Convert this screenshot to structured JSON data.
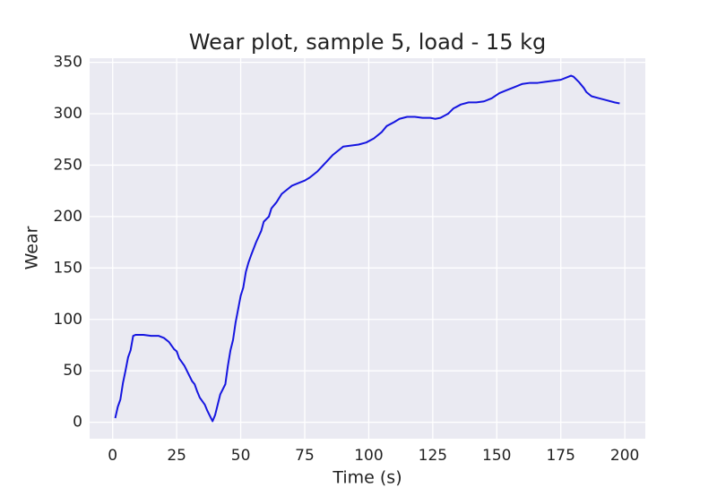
{
  "chart_data": {
    "type": "line",
    "title": "Wear plot, sample 5, load - 15 kg",
    "xlabel": "Time (s)",
    "ylabel": "Wear",
    "x": [
      1,
      2,
      3,
      4,
      5,
      6,
      7,
      8,
      9,
      10,
      12,
      15,
      18,
      20,
      22,
      24,
      25,
      26,
      28,
      30,
      31,
      32,
      33,
      34,
      36,
      37,
      38,
      39,
      40,
      41,
      42,
      44,
      45,
      46,
      47,
      48,
      49,
      50,
      51,
      52,
      53,
      54,
      56,
      58,
      59,
      61,
      62,
      64,
      66,
      68,
      70,
      73,
      75,
      77,
      80,
      83,
      86,
      88,
      90,
      93,
      96,
      99,
      102,
      105,
      107,
      110,
      112,
      115,
      118,
      121,
      124,
      126,
      128,
      131,
      133,
      136,
      139,
      142,
      145,
      148,
      151,
      154,
      157,
      160,
      163,
      166,
      169,
      172,
      175,
      178,
      179,
      180,
      182,
      184,
      185,
      187,
      190,
      193,
      196,
      198
    ],
    "series": [
      {
        "name": "Wear",
        "color": "#1515e0",
        "values": [
          4,
          15,
          22,
          38,
          50,
          63,
          70,
          84,
          85,
          85,
          85,
          84,
          84,
          82,
          78,
          71,
          69,
          62,
          55,
          45,
          40,
          37,
          30,
          24,
          17,
          11,
          6,
          1,
          7,
          17,
          27,
          37,
          55,
          70,
          80,
          97,
          110,
          123,
          131,
          146,
          155,
          162,
          175,
          186,
          195,
          200,
          208,
          214,
          222,
          226,
          230,
          233,
          235,
          238,
          244,
          252,
          260,
          264,
          268,
          269,
          270,
          272,
          276,
          282,
          288,
          292,
          295,
          297,
          297,
          296,
          296,
          295,
          296,
          300,
          305,
          309,
          311,
          311,
          312,
          315,
          320,
          323,
          326,
          329,
          330,
          330,
          331,
          332,
          333,
          336,
          337,
          336,
          331,
          325,
          321,
          317,
          315,
          313,
          311,
          310
        ]
      }
    ],
    "xlim": [
      -9,
      208
    ],
    "ylim": [
      -16,
      354
    ],
    "xticks": [
      0,
      25,
      50,
      75,
      100,
      125,
      150,
      175,
      200
    ],
    "yticks": [
      0,
      50,
      100,
      150,
      200,
      250,
      300,
      350
    ],
    "grid": true
  }
}
